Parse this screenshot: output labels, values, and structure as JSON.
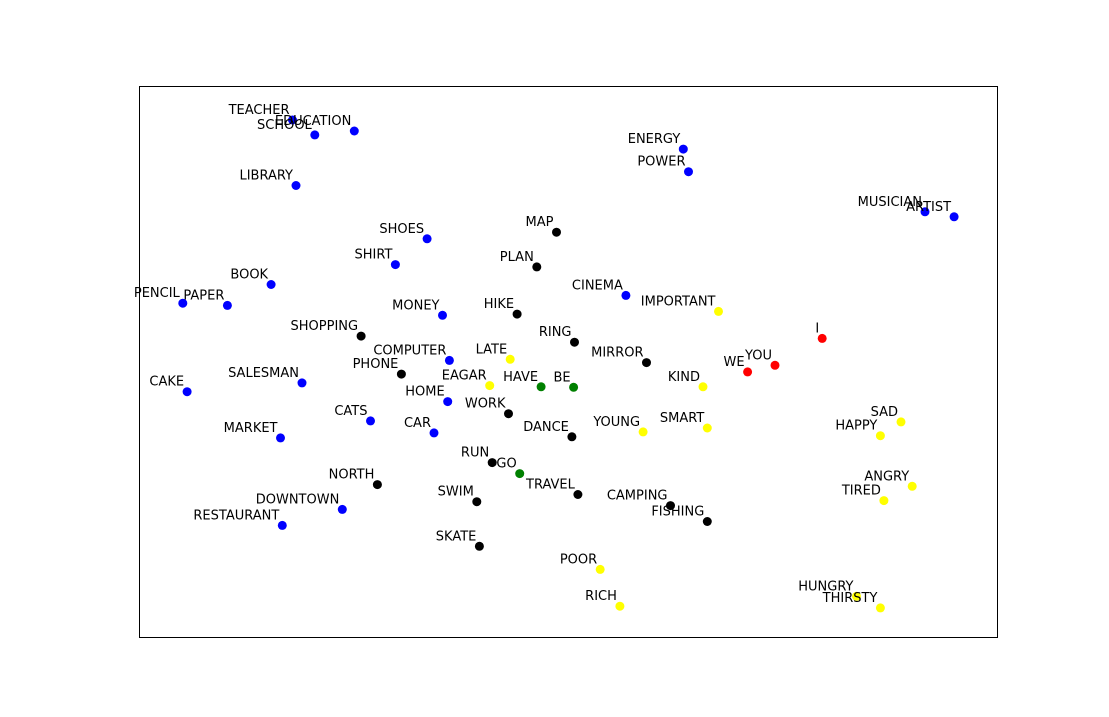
{
  "chart_data": {
    "type": "scatter",
    "title": "",
    "xlabel": "",
    "ylabel": "",
    "xlim": [
      0,
      100
    ],
    "ylim": [
      0,
      100
    ],
    "axes_ticks": false,
    "grid": false,
    "colors": {
      "blue": "#0000ff",
      "black": "#000000",
      "yellow": "#ffff00",
      "red": "#ff0000",
      "green": "#008000"
    },
    "points": [
      {
        "label": "TEACHER",
        "x": 17.8,
        "y": 94.0,
        "color": "blue"
      },
      {
        "label": "SCHOOL",
        "x": 20.4,
        "y": 91.3,
        "color": "blue"
      },
      {
        "label": "EDUCATION",
        "x": 25.0,
        "y": 92.0,
        "color": "blue"
      },
      {
        "label": "LIBRARY",
        "x": 18.2,
        "y": 82.1,
        "color": "blue"
      },
      {
        "label": "SHOES",
        "x": 33.5,
        "y": 72.4,
        "color": "blue"
      },
      {
        "label": "SHIRT",
        "x": 29.8,
        "y": 67.7,
        "color": "blue"
      },
      {
        "label": "BOOK",
        "x": 15.3,
        "y": 64.1,
        "color": "blue"
      },
      {
        "label": "PENCIL",
        "x": 5.0,
        "y": 60.7,
        "color": "blue"
      },
      {
        "label": "PAPER",
        "x": 10.2,
        "y": 60.3,
        "color": "blue"
      },
      {
        "label": "MONEY",
        "x": 35.3,
        "y": 58.5,
        "color": "blue"
      },
      {
        "label": "COMPUTER",
        "x": 36.1,
        "y": 50.3,
        "color": "blue"
      },
      {
        "label": "SALESMAN",
        "x": 18.9,
        "y": 46.2,
        "color": "blue"
      },
      {
        "label": "CAKE",
        "x": 5.5,
        "y": 44.6,
        "color": "blue"
      },
      {
        "label": "HOME",
        "x": 35.9,
        "y": 42.8,
        "color": "blue"
      },
      {
        "label": "CATS",
        "x": 26.9,
        "y": 39.3,
        "color": "blue"
      },
      {
        "label": "CAR",
        "x": 34.3,
        "y": 37.1,
        "color": "blue"
      },
      {
        "label": "MARKET",
        "x": 16.4,
        "y": 36.2,
        "color": "blue"
      },
      {
        "label": "DOWNTOWN",
        "x": 23.6,
        "y": 23.2,
        "color": "blue"
      },
      {
        "label": "RESTAURANT",
        "x": 16.6,
        "y": 20.3,
        "color": "blue"
      },
      {
        "label": "ENERGY",
        "x": 63.4,
        "y": 88.7,
        "color": "blue"
      },
      {
        "label": "POWER",
        "x": 64.0,
        "y": 84.6,
        "color": "blue"
      },
      {
        "label": "CINEMA",
        "x": 56.7,
        "y": 62.1,
        "color": "blue"
      },
      {
        "label": "MUSICIAN",
        "x": 91.6,
        "y": 77.3,
        "color": "blue"
      },
      {
        "label": "ARTIST",
        "x": 95.0,
        "y": 76.4,
        "color": "blue"
      },
      {
        "label": "MAP",
        "x": 48.6,
        "y": 73.6,
        "color": "black"
      },
      {
        "label": "PLAN",
        "x": 46.3,
        "y": 67.3,
        "color": "black"
      },
      {
        "label": "HIKE",
        "x": 44.0,
        "y": 58.7,
        "color": "black"
      },
      {
        "label": "SHOPPING",
        "x": 25.8,
        "y": 54.7,
        "color": "black"
      },
      {
        "label": "RING",
        "x": 50.7,
        "y": 53.6,
        "color": "black"
      },
      {
        "label": "MIRROR",
        "x": 59.1,
        "y": 49.9,
        "color": "black"
      },
      {
        "label": "PHONE",
        "x": 30.5,
        "y": 47.8,
        "color": "black"
      },
      {
        "label": "WORK",
        "x": 43.0,
        "y": 40.6,
        "color": "black"
      },
      {
        "label": "DANCE",
        "x": 50.4,
        "y": 36.4,
        "color": "black"
      },
      {
        "label": "RUN",
        "x": 41.1,
        "y": 31.7,
        "color": "black"
      },
      {
        "label": "NORTH",
        "x": 27.7,
        "y": 27.7,
        "color": "black"
      },
      {
        "label": "SWIM",
        "x": 39.3,
        "y": 24.6,
        "color": "black"
      },
      {
        "label": "TRAVEL",
        "x": 51.1,
        "y": 25.9,
        "color": "black"
      },
      {
        "label": "CAMPING",
        "x": 61.9,
        "y": 23.9,
        "color": "black"
      },
      {
        "label": "FISHING",
        "x": 66.2,
        "y": 21.0,
        "color": "black"
      },
      {
        "label": "SKATE",
        "x": 39.6,
        "y": 16.5,
        "color": "black"
      },
      {
        "label": "LATE",
        "x": 43.2,
        "y": 50.5,
        "color": "yellow"
      },
      {
        "label": "EAGAR",
        "x": 40.8,
        "y": 45.7,
        "color": "yellow"
      },
      {
        "label": "IMPORTANT",
        "x": 67.5,
        "y": 59.2,
        "color": "yellow"
      },
      {
        "label": "KIND",
        "x": 65.7,
        "y": 45.5,
        "color": "yellow"
      },
      {
        "label": "YOUNG",
        "x": 58.7,
        "y": 37.3,
        "color": "yellow"
      },
      {
        "label": "SMART",
        "x": 66.2,
        "y": 38.0,
        "color": "yellow"
      },
      {
        "label": "SAD",
        "x": 88.8,
        "y": 39.1,
        "color": "yellow"
      },
      {
        "label": "HAPPY",
        "x": 86.4,
        "y": 36.6,
        "color": "yellow"
      },
      {
        "label": "ANGRY",
        "x": 90.1,
        "y": 27.4,
        "color": "yellow"
      },
      {
        "label": "TIRED",
        "x": 86.8,
        "y": 24.8,
        "color": "yellow"
      },
      {
        "label": "POOR",
        "x": 53.7,
        "y": 12.3,
        "color": "yellow"
      },
      {
        "label": "RICH",
        "x": 56.0,
        "y": 5.6,
        "color": "yellow"
      },
      {
        "label": "HUNGRY",
        "x": 83.6,
        "y": 7.4,
        "color": "yellow"
      },
      {
        "label": "THIRSTY",
        "x": 86.4,
        "y": 5.3,
        "color": "yellow"
      },
      {
        "label": "I",
        "x": 79.6,
        "y": 54.3,
        "color": "red"
      },
      {
        "label": "WE",
        "x": 70.9,
        "y": 48.2,
        "color": "red"
      },
      {
        "label": "YOU",
        "x": 74.1,
        "y": 49.4,
        "color": "red"
      },
      {
        "label": "HAVE",
        "x": 46.8,
        "y": 45.5,
        "color": "green"
      },
      {
        "label": "BE",
        "x": 50.6,
        "y": 45.4,
        "color": "green"
      },
      {
        "label": "GO",
        "x": 44.3,
        "y": 29.7,
        "color": "green"
      }
    ]
  }
}
